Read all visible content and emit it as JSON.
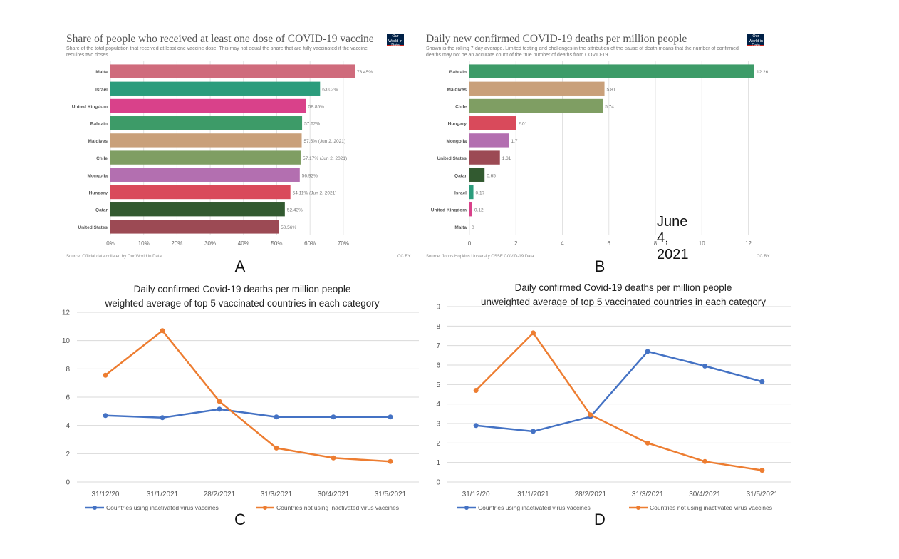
{
  "panels": {
    "a": {
      "letter": "A",
      "title": "Share of people who received at least one dose of COVID-19 vaccine",
      "subtitle": "Share of the total population that received at least one vaccine dose. This may not equal the share that are fully vaccinated if the vaccine requires two doses.",
      "logo": "Our World in Data",
      "source": "Source: Official data collated by Our World in Data",
      "license": "CC BY"
    },
    "b": {
      "letter": "B",
      "title": "Daily new confirmed COVID-19 deaths per million people",
      "subtitle": "Shown is the rolling 7-day average. Limited testing and challenges in the attribution of the cause of death means that the number of confirmed deaths may not be an accurate count of the true number of deaths from COVID-19.",
      "logo": "Our World in Data",
      "source": "Source: Johns Hopkins University CSSE COVID-19 Data",
      "license": "CC BY",
      "date_note": "June 4, 2021"
    },
    "c": {
      "letter": "C",
      "title_line1": "Daily confirmed Covid-19 deaths per million people",
      "title_line2": "weighted average of top 5 vaccinated countries in each category"
    },
    "d": {
      "letter": "D",
      "title_line1": "Daily confirmed Covid-19 deaths per million people",
      "title_line2": "unweighted average of top 5 vaccinated countries in each category"
    }
  },
  "chart_data": [
    {
      "type": "bar",
      "orientation": "horizontal",
      "title": "Share of people who received at least one dose of COVID-19 vaccine",
      "categories": [
        "Malta",
        "Israel",
        "United Kingdom",
        "Bahrain",
        "Maldives",
        "Chile",
        "Mongolia",
        "Hungary",
        "Qatar",
        "United States"
      ],
      "values": [
        73.45,
        63.02,
        58.85,
        57.62,
        57.5,
        57.17,
        56.92,
        54.11,
        52.43,
        50.56
      ],
      "value_labels": [
        "73.45%",
        "63.02%",
        "58.85%",
        "57.62%",
        "57.5% (Jun 2, 2021)",
        "57.17% (Jun 2, 2021)",
        "56.92%",
        "54.11% (Jun 2, 2021)",
        "52.43%",
        "50.56%"
      ],
      "colors": [
        "#cf6b7c",
        "#2b9c7c",
        "#d9418a",
        "#3d9b68",
        "#c9a07a",
        "#7f9e63",
        "#b36fb0",
        "#d94a5b",
        "#325a30",
        "#9c4a54"
      ],
      "xticks": [
        "0%",
        "10%",
        "20%",
        "30%",
        "40%",
        "50%",
        "60%",
        "70%"
      ],
      "xlim": [
        0,
        73.45
      ],
      "grid": true
    },
    {
      "type": "bar",
      "orientation": "horizontal",
      "title": "Daily new confirmed COVID-19 deaths per million people",
      "categories": [
        "Bahrain",
        "Maldives",
        "Chile",
        "Hungary",
        "Mongolia",
        "United States",
        "Qatar",
        "Israel",
        "United Kingdom",
        "Malta"
      ],
      "values": [
        12.26,
        5.81,
        5.74,
        2.01,
        1.7,
        1.31,
        0.65,
        0.17,
        0.12,
        0
      ],
      "value_labels": [
        "12.26",
        "5.81",
        "5.74",
        "2.01",
        "1.7",
        "1.31",
        "0.65",
        "0.17",
        "0.12",
        "0"
      ],
      "colors": [
        "#3d9b68",
        "#c9a07a",
        "#7f9e63",
        "#d94a5b",
        "#b36fb0",
        "#9c4a54",
        "#325a30",
        "#2b9c7c",
        "#d9418a",
        "#cf6b7c"
      ],
      "xticks": [
        "0",
        "2",
        "4",
        "6",
        "8",
        "10",
        "12"
      ],
      "xlim": [
        0,
        12.26
      ],
      "grid": true
    },
    {
      "type": "line",
      "title": "Daily confirmed Covid-19 deaths per million people",
      "subtitle": "weighted average of top 5 vaccinated countries in each category",
      "x": [
        "31/12/20",
        "31/1/2021",
        "28/2/2021",
        "31/3/2021",
        "30/4/2021",
        "31/5/2021"
      ],
      "ylim": [
        0,
        12
      ],
      "yticks": [
        "0",
        "2",
        "4",
        "6",
        "8",
        "10",
        "12"
      ],
      "grid": true,
      "legend": "bottom",
      "series": [
        {
          "name": "Countries using inactivated virus vaccines",
          "values": [
            4.7,
            4.55,
            5.15,
            4.6,
            4.6,
            4.6
          ],
          "color": "#4472c4"
        },
        {
          "name": "Countries not using inactivated virus vaccines",
          "values": [
            7.55,
            10.7,
            5.7,
            2.4,
            1.7,
            1.45
          ],
          "color": "#ed7d31"
        }
      ]
    },
    {
      "type": "line",
      "title": "Daily confirmed Covid-19 deaths per million people",
      "subtitle": "unweighted average of top 5 vaccinated countries in each category",
      "x": [
        "31/12/20",
        "31/1/2021",
        "28/2/2021",
        "31/3/2021",
        "30/4/2021",
        "31/5/2021"
      ],
      "ylim": [
        0,
        9
      ],
      "yticks": [
        "0",
        "1",
        "2",
        "3",
        "4",
        "5",
        "6",
        "7",
        "8",
        "9"
      ],
      "grid": true,
      "legend": "bottom",
      "series": [
        {
          "name": "Countries using inactivated virus vaccines",
          "values": [
            2.9,
            2.6,
            3.35,
            6.7,
            5.95,
            5.15
          ],
          "color": "#4472c4"
        },
        {
          "name": "Countries not using inactivated virus vaccines",
          "values": [
            4.7,
            7.65,
            3.45,
            2.0,
            1.05,
            0.6
          ],
          "color": "#ed7d31"
        }
      ]
    }
  ]
}
